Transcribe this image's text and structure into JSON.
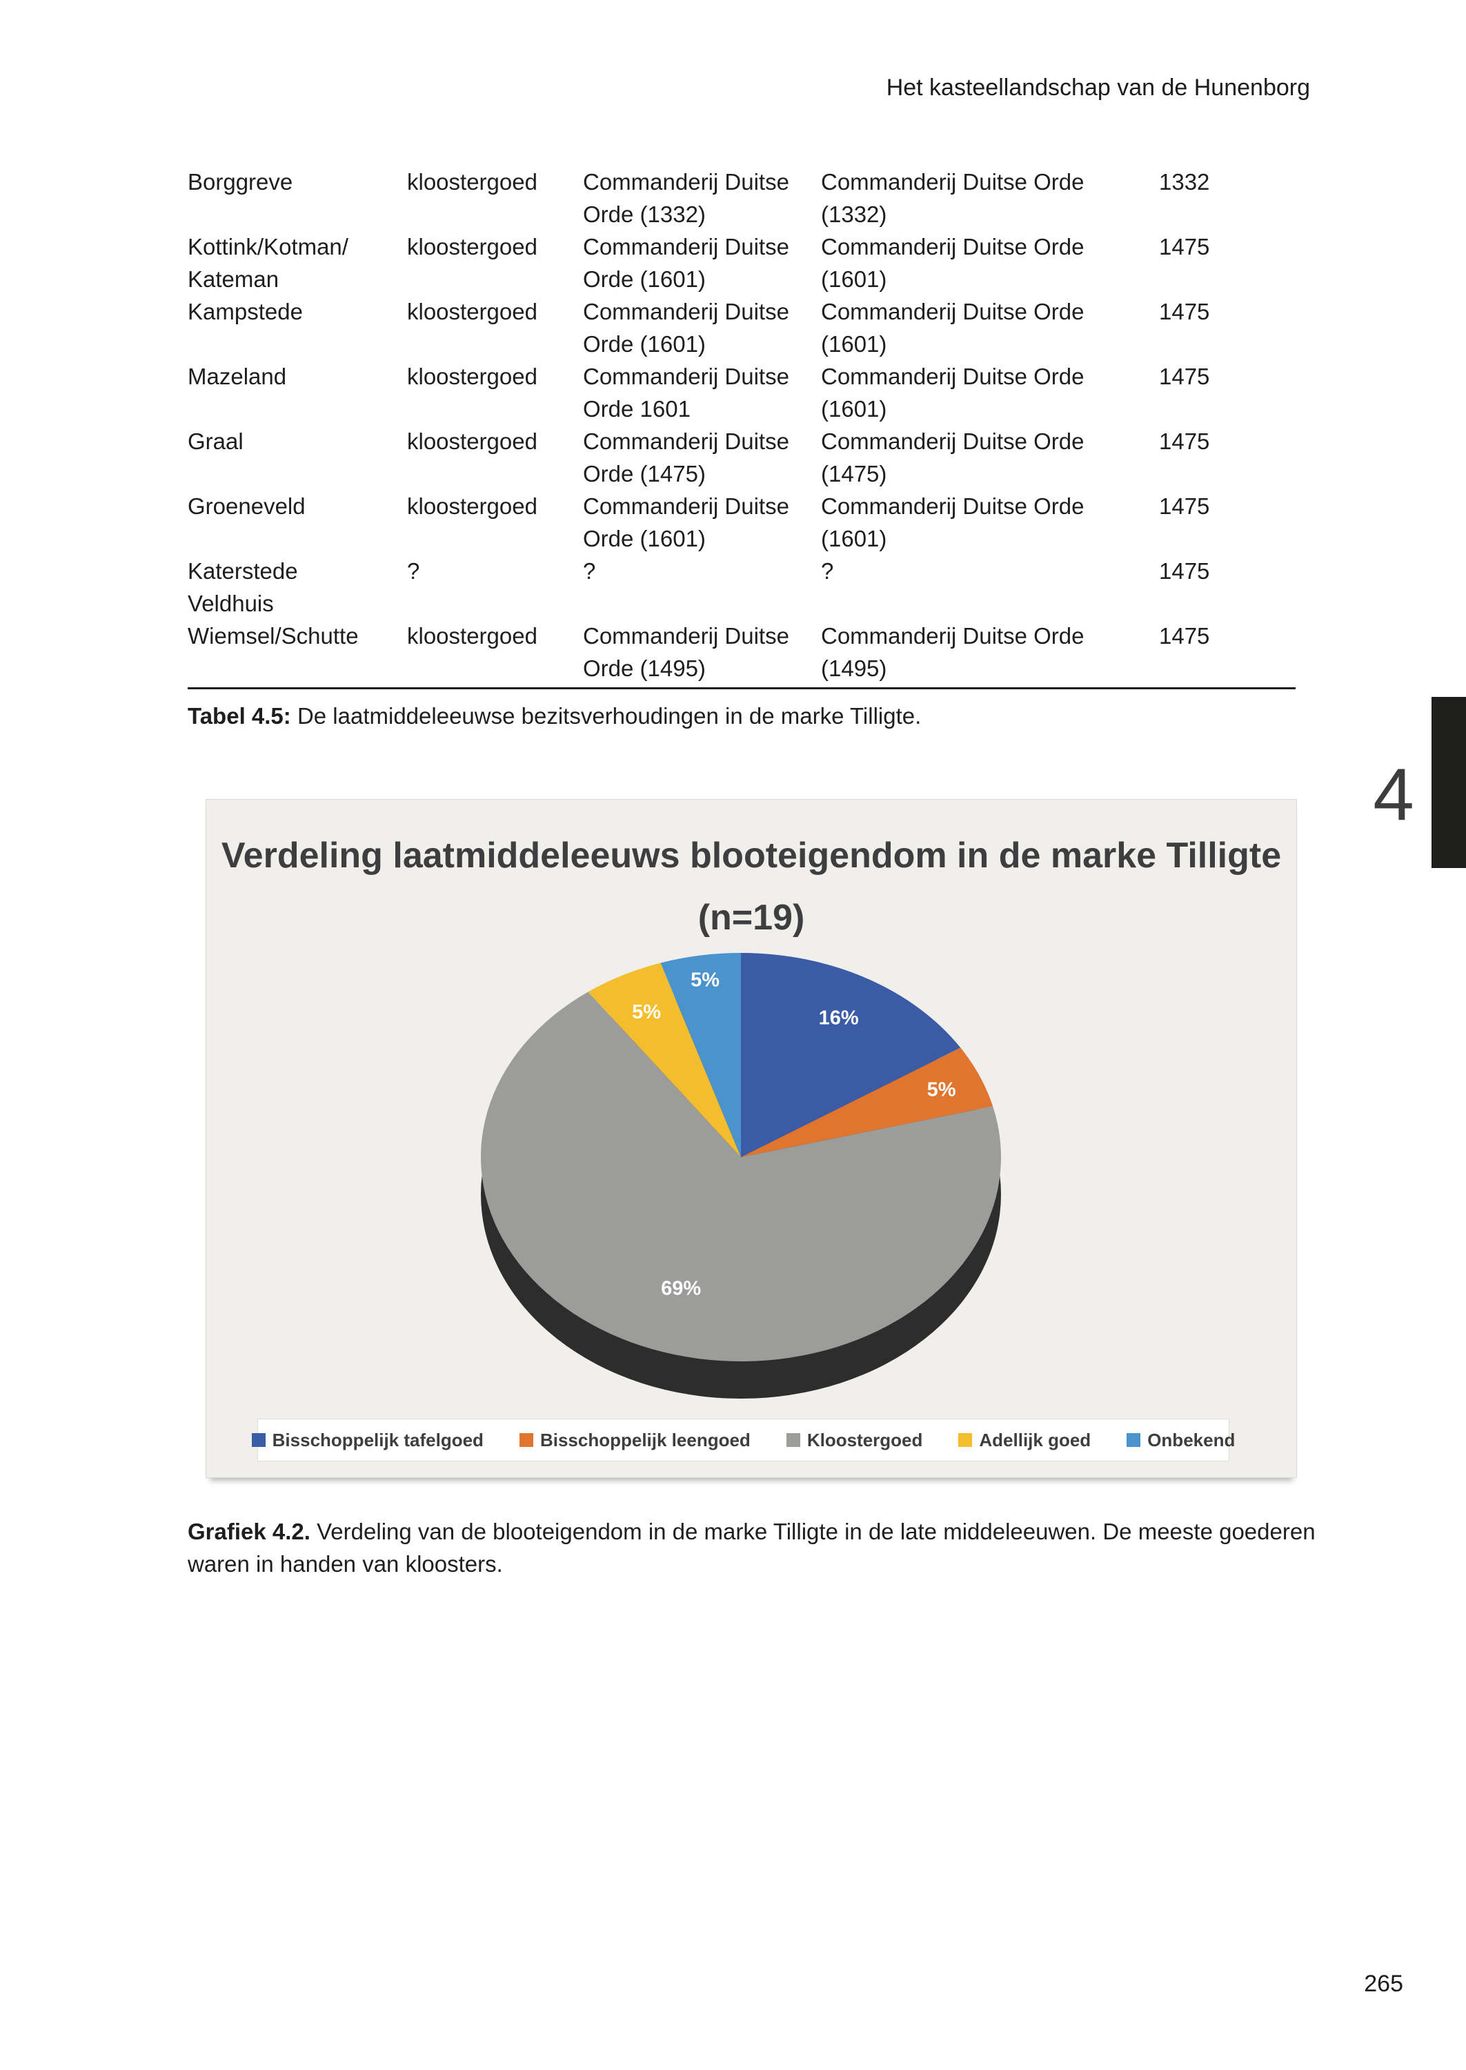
{
  "page": {
    "header": "Het kasteellandschap van de Hunenborg",
    "chapter_number": "4",
    "chapter_tab_color": "#1e1e1c",
    "page_number": "265"
  },
  "table": {
    "rows": [
      [
        "Borggreve",
        "kloostergoed",
        "Commanderij Duitse Orde (1332)",
        "Commanderij Duitse Orde (1332)",
        "1332"
      ],
      [
        "Kottink/Kotman/\nKateman",
        "kloostergoed",
        "Commanderij Duitse Orde (1601)",
        "Commanderij Duitse Orde (1601)",
        "1475"
      ],
      [
        "Kampstede",
        "kloostergoed",
        "Commanderij Duitse Orde (1601)",
        "Commanderij Duitse Orde (1601)",
        "1475"
      ],
      [
        "Mazeland",
        "kloostergoed",
        "Commanderij Duitse Orde 1601",
        "Commanderij Duitse Orde (1601)",
        "1475"
      ],
      [
        "Graal",
        "kloostergoed",
        "Commanderij Duitse Orde (1475)",
        "Commanderij Duitse Orde (1475)",
        "1475"
      ],
      [
        "Groeneveld",
        "kloostergoed",
        "Commanderij Duitse Orde (1601)",
        "Commanderij Duitse Orde (1601)",
        "1475"
      ],
      [
        "Katerstede\nVeldhuis",
        "?",
        "?",
        "?",
        "1475"
      ],
      [
        "Wiemsel/Schutte",
        "kloostergoed",
        "Commanderij Duitse Orde (1495)",
        "Commanderij Duitse Orde (1495)",
        "1475"
      ]
    ],
    "caption_label": "Tabel 4.5:",
    "caption_text": " De laatmiddeleeuwse bezitsverhoudingen in de marke Tilligte."
  },
  "figure": {
    "caption_label": "Grafiek 4.2.",
    "caption_text": " Verdeling van de blooteigendom in de marke Tilligte in de late middeleeuwen. De meeste goederen waren in handen van kloosters."
  },
  "chart_data": {
    "type": "pie",
    "style": "3d",
    "title": "Verdeling laatmiddeleeuws blooteigendom in de marke Tilligte (n=19)",
    "n": 19,
    "labels": [
      "Bisschoppelijk tafelgoed",
      "Bisschoppelijk leengoed",
      "Kloostergoed",
      "Adellijk goed",
      "Onbekend"
    ],
    "values": [
      16,
      5,
      69,
      5,
      5
    ],
    "data_labels": [
      "16%",
      "5%",
      "69%",
      "5%",
      "5%"
    ],
    "colors": [
      "#3c5ba6",
      "#e0752f",
      "#9c9c9a",
      "#f3bd2d",
      "#4b93cd"
    ],
    "rim_color": "#2d2d2d",
    "background": "#f0efec",
    "legend_position": "bottom"
  }
}
